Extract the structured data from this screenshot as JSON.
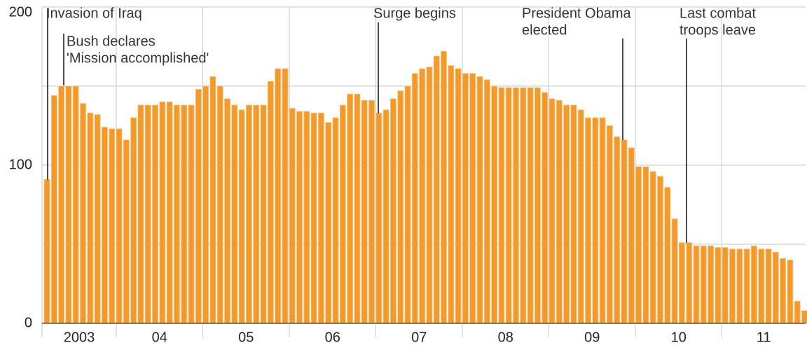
{
  "chart_data": {
    "type": "bar",
    "color": "#f39a2b",
    "ylim": [
      0,
      200
    ],
    "yticks": [
      0,
      100,
      200
    ],
    "ygrid": [
      0,
      50,
      100,
      150,
      200
    ],
    "year_labels": [
      "2003",
      "04",
      "05",
      "06",
      "07",
      "08",
      "09",
      "10",
      "11"
    ],
    "values": [
      91,
      144,
      150,
      150,
      150,
      139,
      133,
      132,
      124,
      123,
      123,
      116,
      130,
      138,
      138,
      138,
      140,
      140,
      138,
      138,
      138,
      148,
      150,
      156,
      150,
      142,
      138,
      135,
      138,
      138,
      138,
      153,
      161,
      161,
      136,
      134,
      134,
      133,
      133,
      127,
      130,
      138,
      145,
      145,
      141,
      141,
      133,
      135,
      142,
      147,
      150,
      158,
      161,
      162,
      169,
      172,
      163,
      161,
      158,
      158,
      156,
      154,
      150,
      149,
      149,
      149,
      149,
      149,
      149,
      146,
      142,
      141,
      138,
      138,
      135,
      130,
      130,
      130,
      125,
      118,
      116,
      111,
      99,
      99,
      96,
      93,
      86,
      66,
      51,
      51,
      49,
      49,
      49,
      48,
      48,
      47,
      47,
      47,
      49,
      47,
      47,
      45,
      41,
      40,
      14,
      8
    ],
    "annotations": [
      {
        "lines": [
          "Invasion of Iraq"
        ]
      },
      {
        "lines": [
          "Bush declares",
          "'Mission accomplished'"
        ]
      },
      {
        "lines": [
          "Surge begins"
        ]
      },
      {
        "lines": [
          "President Obama",
          "elected"
        ]
      },
      {
        "lines": [
          "Last combat",
          "troops leave"
        ]
      }
    ]
  }
}
